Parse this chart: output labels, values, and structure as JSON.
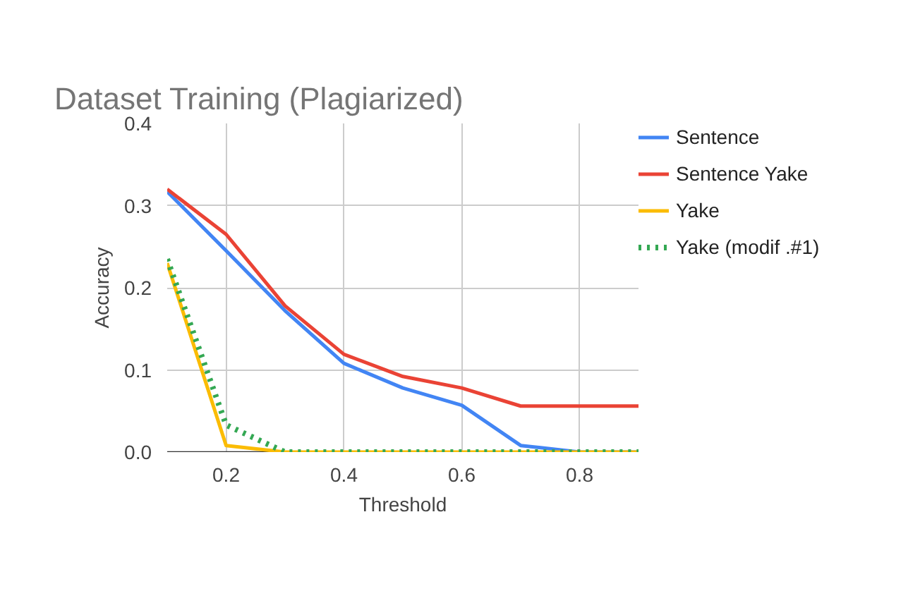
{
  "chart_data": {
    "type": "line",
    "title": "Dataset Training (Plagiarized)",
    "xlabel": "Threshold",
    "ylabel": "Accuracy",
    "x": [
      0.1,
      0.2,
      0.3,
      0.4,
      0.5,
      0.6,
      0.7,
      0.8,
      0.9
    ],
    "series": [
      {
        "name": "Sentence",
        "color": "#4285f4",
        "values": [
          0.317,
          0.245,
          0.172,
          0.108,
          0.078,
          0.057,
          0.008,
          0,
          0
        ]
      },
      {
        "name": "Sentence Yake",
        "color": "#ea4335",
        "values": [
          0.32,
          0.265,
          0.178,
          0.119,
          0.092,
          0.078,
          0.056,
          0.056,
          0.056
        ]
      },
      {
        "name": "Yake",
        "color": "#fbbc04",
        "values": [
          0.23,
          0.008,
          0,
          0,
          0,
          0,
          0,
          0,
          0
        ]
      },
      {
        "name": "Yake (modif .#1)",
        "color": "#34a853",
        "line_style": "dotted",
        "values": [
          0.235,
          0.033,
          0,
          0,
          0,
          0,
          0,
          0,
          0
        ]
      }
    ],
    "xlim": [
      0.1,
      0.9
    ],
    "ylim": [
      0,
      0.4
    ],
    "xticks": [
      0.2,
      0.4,
      0.6,
      0.8
    ],
    "yticks": [
      {
        "value": 0,
        "label": "0.0"
      },
      0.1,
      0.2,
      0.3,
      0.4
    ],
    "grid": true,
    "legend": "right",
    "line_style": "solid",
    "marker": "none"
  }
}
